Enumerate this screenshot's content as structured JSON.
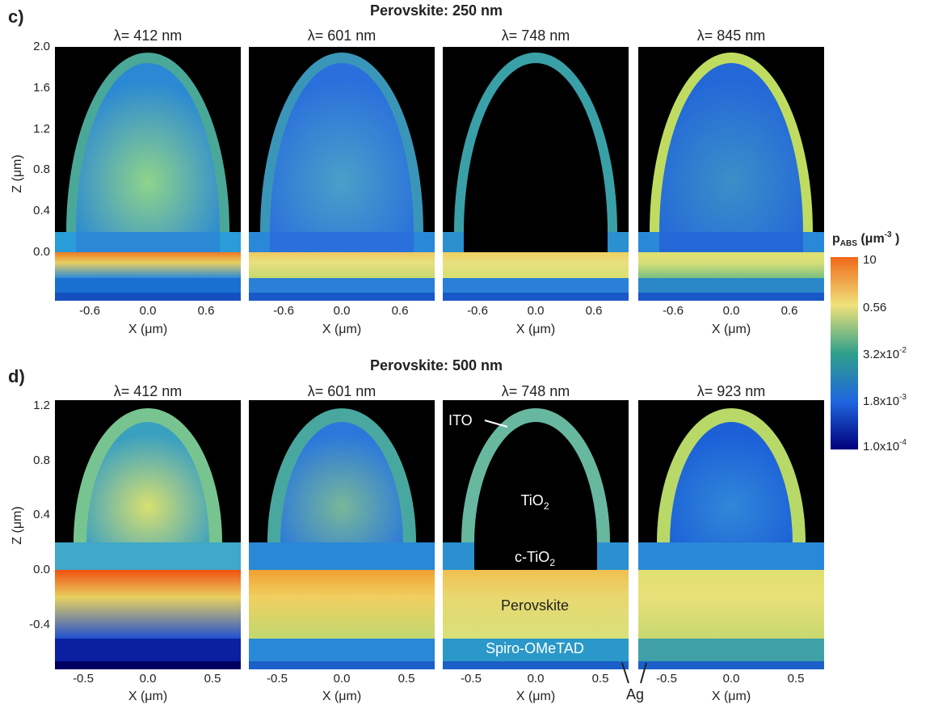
{
  "figure": {
    "rows": [
      {
        "label": "c)",
        "title": "Perovskite: 250 nm",
        "y_axis_label": "Z (μm)",
        "y_ticks": [
          "2.0",
          "1.6",
          "1.2",
          "0.8",
          "0.4",
          "0.0"
        ],
        "panels": [
          {
            "title": "λ= 412 nm",
            "x_ticks": [
              "-0.6",
              "0.0",
              "0.6"
            ],
            "x_axis_label": "X (μm)"
          },
          {
            "title": "λ= 601 nm",
            "x_ticks": [
              "-0.6",
              "0.0",
              "0.6"
            ],
            "x_axis_label": "X (μm)"
          },
          {
            "title": "λ= 748 nm",
            "x_ticks": [
              "-0.6",
              "0.0",
              "0.6"
            ],
            "x_axis_label": "X (μm)"
          },
          {
            "title": "λ= 845 nm",
            "x_ticks": [
              "-0.6",
              "0.0",
              "0.6"
            ],
            "x_axis_label": "X (μm)"
          }
        ]
      },
      {
        "label": "d)",
        "title": "Perovskite: 500 nm",
        "y_axis_label": "Z (μm)",
        "y_ticks": [
          "1.2",
          "0.8",
          "0.4",
          "0.0",
          "-0.4"
        ],
        "panels": [
          {
            "title": "λ= 412 nm",
            "x_ticks": [
              "-0.5",
              "0.0",
              "0.5"
            ],
            "x_axis_label": "X (μm)"
          },
          {
            "title": "λ= 601 nm",
            "x_ticks": [
              "-0.5",
              "0.0",
              "0.5"
            ],
            "x_axis_label": "X (μm)"
          },
          {
            "title": "λ= 748 nm",
            "x_ticks": [
              "-0.5",
              "0.0",
              "0.5"
            ],
            "x_axis_label": "X (μm)"
          },
          {
            "title": "λ= 923 nm",
            "x_ticks": [
              "-0.5",
              "0.0",
              "0.5"
            ],
            "x_axis_label": "X (μm)"
          }
        ]
      }
    ],
    "colorbar": {
      "label": {
        "base": "p",
        "sub": "ABS",
        "unit": " (μm",
        "sup": "-3",
        "close": " )"
      },
      "ticks": [
        {
          "base": "10"
        },
        {
          "base": "0.56"
        },
        {
          "base": "3.2x10",
          "sup": "-2"
        },
        {
          "base": "1.8x10",
          "sup": "-3"
        },
        {
          "base": "1.0x10",
          "sup": "-4"
        }
      ]
    },
    "annotations": {
      "ito": "ITO",
      "tio2": {
        "base": "TiO",
        "sub": "2"
      },
      "c_tio2": {
        "base": "c-TiO",
        "sub": "2"
      },
      "perovskite": "Perovskite",
      "spiro": "Spiro-OMeTAD",
      "ag": "Ag"
    }
  }
}
